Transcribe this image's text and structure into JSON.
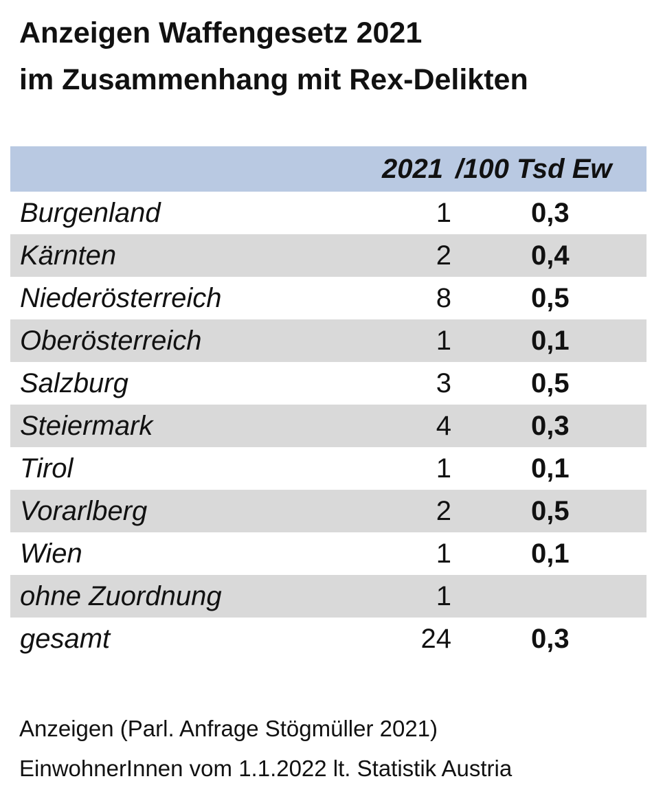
{
  "title": {
    "line1": "Anzeigen Waffengesetz 2021",
    "line2": "im Zusammenhang mit Rex-Delikten"
  },
  "table": {
    "headers": {
      "year": "2021",
      "rate": "/100 Tsd Ew"
    },
    "rows": [
      {
        "name": "Burgenland",
        "count": "1",
        "rate": "0,3"
      },
      {
        "name": "Kärnten",
        "count": "2",
        "rate": "0,4"
      },
      {
        "name": "Niederösterreich",
        "count": "8",
        "rate": "0,5"
      },
      {
        "name": "Oberösterreich",
        "count": "1",
        "rate": "0,1"
      },
      {
        "name": "Salzburg",
        "count": "3",
        "rate": "0,5"
      },
      {
        "name": "Steiermark",
        "count": "4",
        "rate": "0,3"
      },
      {
        "name": "Tirol",
        "count": "1",
        "rate": "0,1"
      },
      {
        "name": "Vorarlberg",
        "count": "2",
        "rate": "0,5"
      },
      {
        "name": "Wien",
        "count": "1",
        "rate": "0,1"
      },
      {
        "name": "ohne Zuordnung",
        "count": "1",
        "rate": ""
      },
      {
        "name": "gesamt",
        "count": "24",
        "rate": "0,3"
      }
    ],
    "header_color": "#b9c9e2",
    "stripe_color": "#d9d9d9"
  },
  "notes": {
    "source": "Anzeigen (Parl. Anfrage Stögmüller 2021)",
    "population": "EinwohnerInnen vom 1.1.2022 lt. Statistik Austria"
  }
}
